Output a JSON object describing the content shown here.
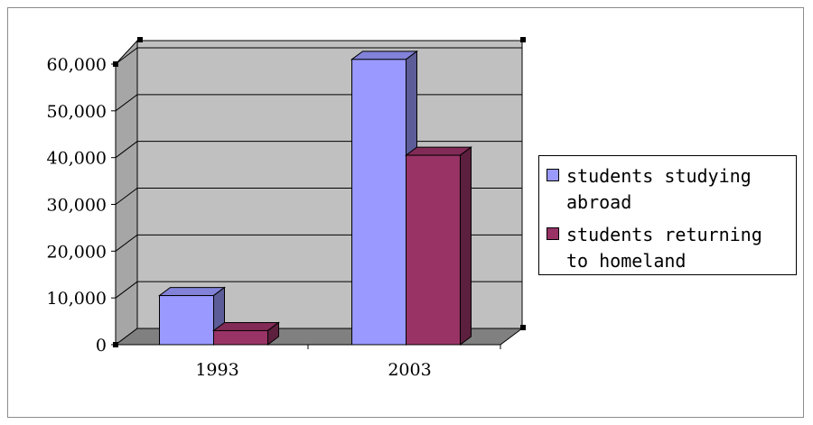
{
  "chart_data": {
    "type": "bar",
    "categories": [
      "1993",
      "2003"
    ],
    "series": [
      {
        "name": "students studying abroad",
        "values": [
          10500,
          61000
        ],
        "color": "#9999ff"
      },
      {
        "name": "students returning to homeland",
        "values": [
          3000,
          40500
        ],
        "color": "#993366"
      }
    ],
    "ylim": [
      0,
      60000
    ],
    "yticks": [
      "0",
      "10,000",
      "20,000",
      "30,000",
      "40,000",
      "50,000",
      "60,000"
    ],
    "ytick_values": [
      0,
      10000,
      20000,
      30000,
      40000,
      50000,
      60000
    ],
    "grid": true,
    "style": "3d-clustered-column",
    "wall_color": "#c0c0c0",
    "floor_color": "#808080",
    "legend_position": "right"
  }
}
